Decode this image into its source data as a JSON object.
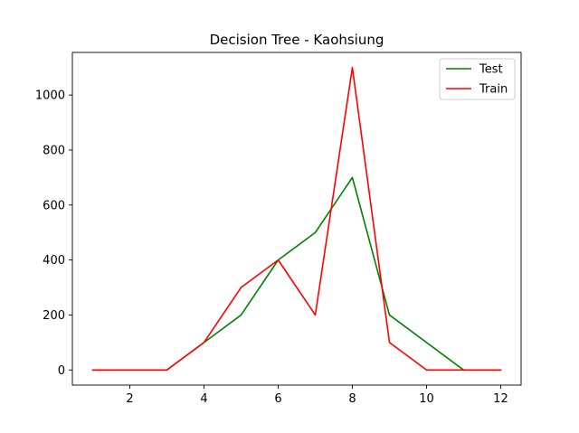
{
  "chart_data": {
    "type": "line",
    "title": "Decision Tree - Kaohsiung",
    "xlabel": "",
    "ylabel": "",
    "x": [
      1,
      2,
      3,
      4,
      5,
      6,
      7,
      8,
      9,
      10,
      11,
      12
    ],
    "series": [
      {
        "name": "Test",
        "color": "#008000",
        "values": [
          0,
          0,
          0,
          100,
          200,
          400,
          500,
          700,
          200,
          100,
          0,
          0
        ]
      },
      {
        "name": "Train",
        "color": "#ff0000",
        "values": [
          0,
          0,
          0,
          100,
          300,
          400,
          200,
          1100,
          100,
          0,
          0,
          0
        ]
      }
    ],
    "xlim": [
      0.45,
      12.55
    ],
    "ylim": [
      -55,
      1155
    ],
    "xticks": [
      2,
      4,
      6,
      8,
      10,
      12
    ],
    "yticks": [
      0,
      200,
      400,
      600,
      800,
      1000
    ],
    "grid": false,
    "legend_position": "top-right"
  }
}
